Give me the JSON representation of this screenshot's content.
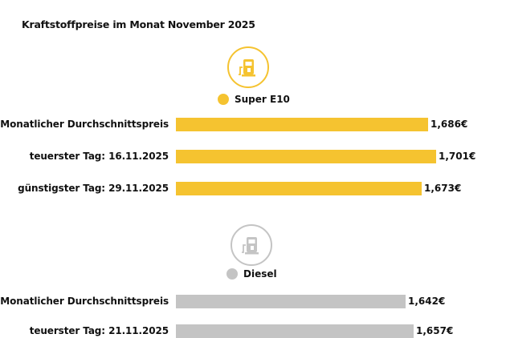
{
  "title": "Kraftstoffpreise im Monat November 2025",
  "colors": {
    "super_e10": "#f5c330",
    "diesel": "#c4c4c4",
    "icon_fuel": "#f5c330",
    "icon_diesel": "#c4c4c4"
  },
  "chart_data": [
    {
      "type": "bar",
      "orientation": "horizontal",
      "series_name": "Super E10",
      "icon": "fuel-pump-icon",
      "categories": [
        "Monatlicher Durchschnittspreis",
        "teuerster Tag: 16.11.2025",
        "günstigster Tag: 29.11.2025"
      ],
      "values": [
        1.686,
        1.701,
        1.673
      ],
      "value_labels": [
        "1,686€",
        "1,701€",
        "1,673€"
      ],
      "unit": "€"
    },
    {
      "type": "bar",
      "orientation": "horizontal",
      "series_name": "Diesel",
      "icon": "fuel-pump-icon",
      "categories": [
        "Monatlicher Durchschnittspreis",
        "teuerster Tag: 21.11.2025"
      ],
      "values": [
        1.642,
        1.657
      ],
      "value_labels": [
        "1,642€",
        "1,657€"
      ],
      "unit": "€"
    }
  ]
}
